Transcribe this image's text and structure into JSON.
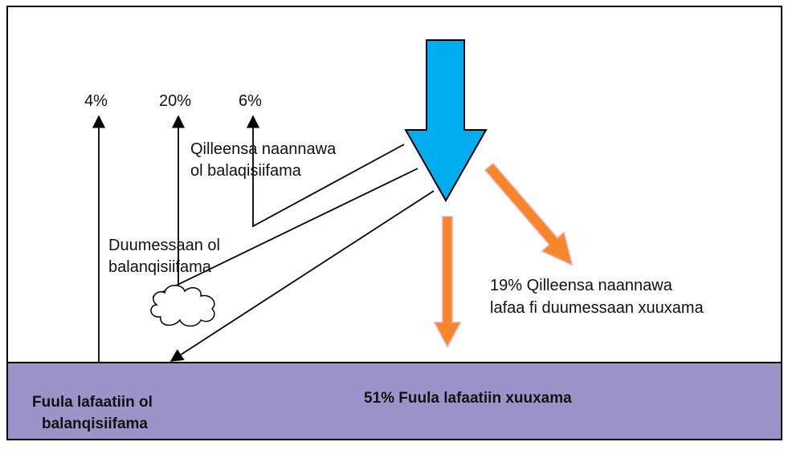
{
  "percent_labels": [
    "4%",
    "20%",
    "6%"
  ],
  "atmosphere_reflection": {
    "lines": [
      "Qilleensa naannawa",
      "ol balaqisiifama"
    ]
  },
  "cloud_reflection": {
    "lines": [
      "Duumessaan ol",
      "balanqisiifama"
    ]
  },
  "absorbed_atmosphere": {
    "lines": [
      "19% Qilleensa naannawa",
      "lafaa fi duumessaan xuuxama"
    ]
  },
  "surface_reflection": {
    "lines": [
      "Fuula lafaatiin ol",
      "balanqisiifama"
    ]
  },
  "surface_absorption": "51% Fuula lafaatiin xuuxama"
}
